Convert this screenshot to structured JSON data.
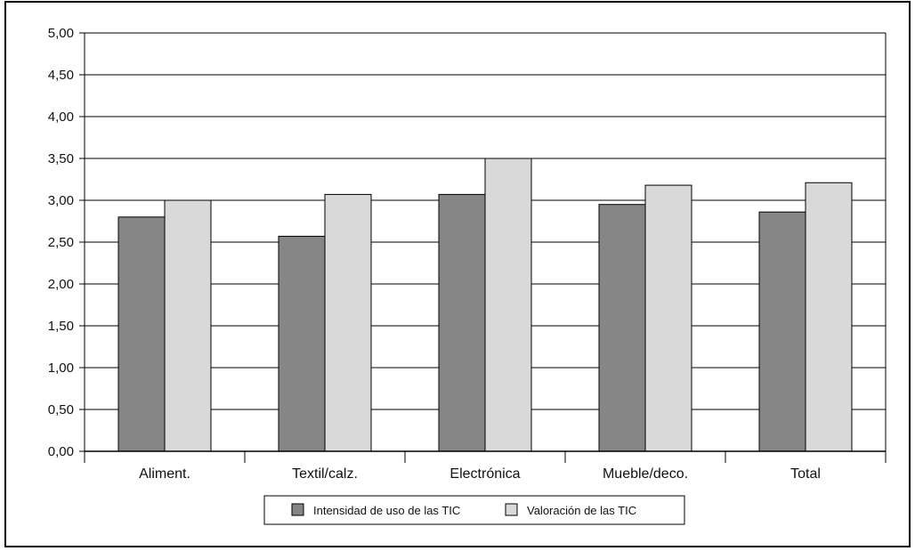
{
  "chart_data": {
    "type": "bar",
    "categories": [
      "Aliment.",
      "Textil/calz.",
      "Electrónica",
      "Mueble/deco.",
      "Total"
    ],
    "series": [
      {
        "name": "Intensidad de uso de las TIC",
        "values": [
          2.8,
          2.57,
          3.07,
          2.95,
          2.86
        ],
        "color": "#868686"
      },
      {
        "name": "Valoración de las TIC",
        "values": [
          3.0,
          3.07,
          3.5,
          3.18,
          3.21
        ],
        "color": "#d9d9d9"
      }
    ],
    "ylim": [
      0,
      5
    ],
    "yticks": [
      "0,00",
      "0,50",
      "1,00",
      "1,50",
      "2,00",
      "2,50",
      "3,00",
      "3,50",
      "4,00",
      "4,50",
      "5,00"
    ],
    "grid": true,
    "legend_position": "bottom",
    "title": "",
    "xlabel": "",
    "ylabel": ""
  }
}
